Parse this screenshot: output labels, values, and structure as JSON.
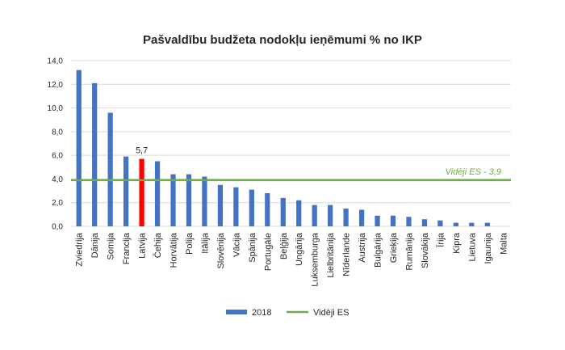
{
  "chart_data": {
    "type": "bar",
    "title": "Pašvaldību budžeta nodokļu ieņēmumi % no IKP",
    "xlabel": "",
    "ylabel": "",
    "ylim": [
      0,
      14
    ],
    "yticks": [
      "0,0",
      "2,0",
      "4,0",
      "6,0",
      "8,0",
      "10,0",
      "12,0",
      "14,0"
    ],
    "grid": true,
    "legend_position": "bottom",
    "categories": [
      "Zviedrija",
      "Dānija",
      "Somija",
      "Francija",
      "Latvija",
      "Čehija",
      "Horvātija",
      "Polija",
      "Itālija",
      "Slovēnija",
      "Vācija",
      "Spānija",
      "Portugāle",
      "Beļģija",
      "Ungārija",
      "Luksemburga",
      "Lielbritānija",
      "Nīderlande",
      "Austrija",
      "Bulgārija",
      "Grieķija",
      "Rumānija",
      "Slovākija",
      "Īrija",
      "Kipra",
      "Lietuva",
      "Igaunija",
      "Malta"
    ],
    "series": [
      {
        "name": "2018",
        "type": "bar",
        "color": "#4472c4",
        "values": [
          13.2,
          12.1,
          9.6,
          5.9,
          5.7,
          5.5,
          4.4,
          4.4,
          4.2,
          3.5,
          3.3,
          3.1,
          2.8,
          2.4,
          2.2,
          1.8,
          1.8,
          1.5,
          1.4,
          0.9,
          0.9,
          0.8,
          0.6,
          0.5,
          0.3,
          0.3,
          0.3,
          0.0
        ]
      },
      {
        "name": "Vidēji ES",
        "type": "line",
        "color": "#70ad47",
        "value": 3.9
      }
    ],
    "highlight": {
      "category": "Latvija",
      "color": "#ff0000",
      "label": "5,7"
    },
    "annotation": "Vidēji ES - 3,9"
  }
}
